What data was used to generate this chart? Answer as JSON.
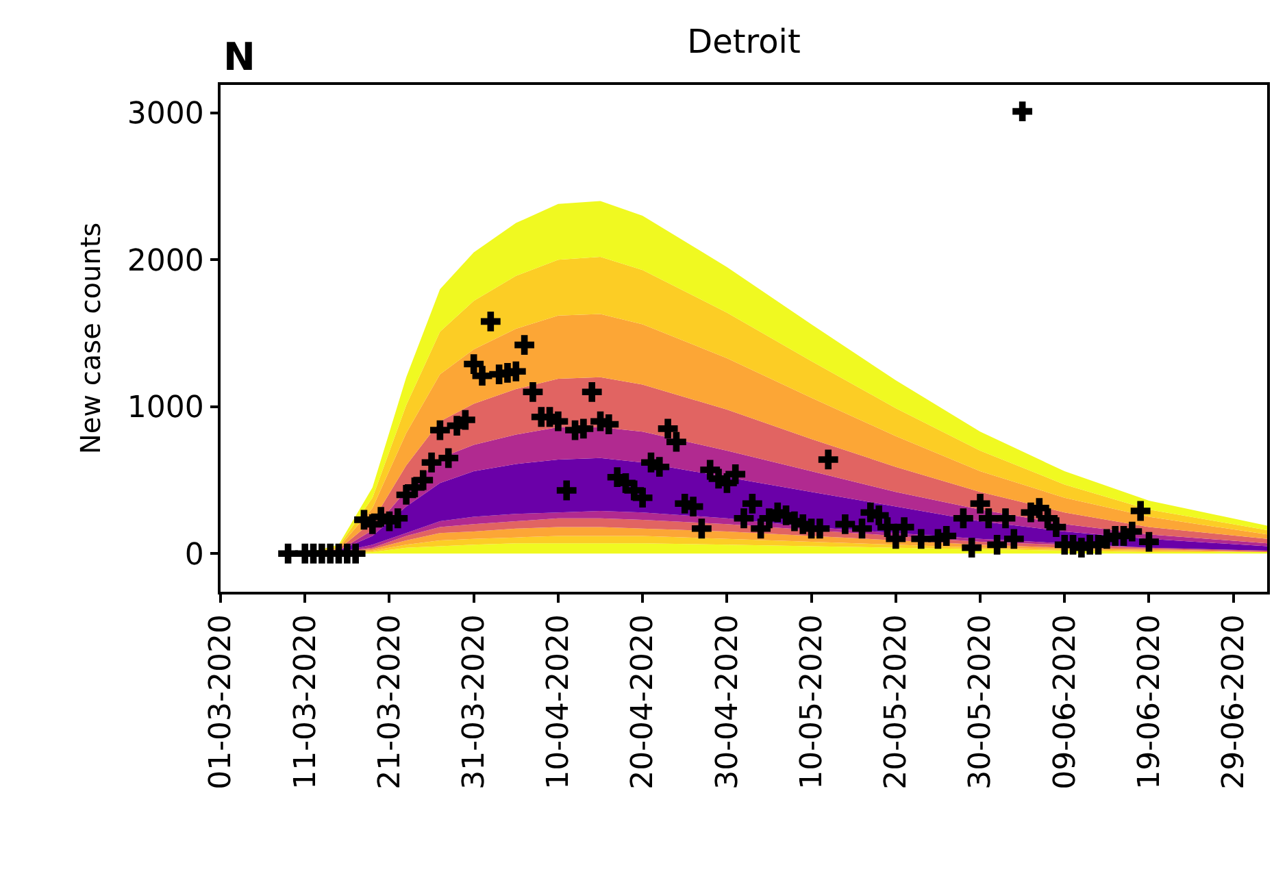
{
  "chart_data": {
    "type": "area",
    "stacked": true,
    "title": "Detroit",
    "ylabel": "New case counts",
    "annotations": [
      "N"
    ],
    "xlim": [
      "2020-03-01",
      "2020-07-03"
    ],
    "xticks": [
      {
        "value": "2020-03-01",
        "label": "01-03-2020"
      },
      {
        "value": "2020-03-11",
        "label": "11-03-2020"
      },
      {
        "value": "2020-03-21",
        "label": "21-03-2020"
      },
      {
        "value": "2020-03-31",
        "label": "31-03-2020"
      },
      {
        "value": "2020-04-10",
        "label": "10-04-2020"
      },
      {
        "value": "2020-04-20",
        "label": "20-04-2020"
      },
      {
        "value": "2020-04-30",
        "label": "30-04-2020"
      },
      {
        "value": "2020-05-10",
        "label": "10-05-2020"
      },
      {
        "value": "2020-05-20",
        "label": "20-05-2020"
      },
      {
        "value": "2020-05-30",
        "label": "30-05-2020"
      },
      {
        "value": "2020-06-09",
        "label": "09-06-2020"
      },
      {
        "value": "2020-06-19",
        "label": "19-06-2020"
      },
      {
        "value": "2020-06-29",
        "label": "29-06-2020"
      }
    ],
    "ylim": [
      -260,
      3190
    ],
    "yticks": [
      0,
      1000,
      2000,
      3000
    ],
    "x": [
      "2020-03-11",
      "2020-03-15",
      "2020-03-19",
      "2020-03-23",
      "2020-03-27",
      "2020-03-31",
      "2020-04-05",
      "2020-04-10",
      "2020-04-15",
      "2020-04-20",
      "2020-04-30",
      "2020-05-10",
      "2020-05-20",
      "2020-05-30",
      "2020-06-09",
      "2020-06-19",
      "2020-07-03"
    ],
    "series": [
      {
        "color": "#f0f921",
        "values": [
          0,
          0,
          10,
          40,
          50,
          60,
          70,
          70,
          70,
          70,
          60,
          50,
          40,
          30,
          20,
          10,
          10
        ]
      },
      {
        "color": "#fccd25",
        "values": [
          0,
          0,
          10,
          20,
          40,
          40,
          40,
          50,
          50,
          50,
          40,
          30,
          20,
          10,
          10,
          10,
          0
        ]
      },
      {
        "color": "#fca636",
        "values": [
          0,
          10,
          10,
          30,
          50,
          50,
          60,
          60,
          60,
          50,
          50,
          40,
          30,
          20,
          10,
          10,
          0
        ]
      },
      {
        "color": "#e16462",
        "values": [
          0,
          0,
          10,
          30,
          40,
          50,
          50,
          60,
          60,
          60,
          50,
          40,
          30,
          20,
          20,
          10,
          10
        ]
      },
      {
        "color": "#b12a90",
        "values": [
          0,
          0,
          20,
          20,
          40,
          50,
          50,
          40,
          50,
          50,
          40,
          20,
          20,
          20,
          10,
          0,
          0
        ]
      },
      {
        "color": "#6a00a8",
        "values": [
          0,
          10,
          60,
          180,
          260,
          310,
          340,
          360,
          360,
          340,
          280,
          240,
          180,
          120,
          80,
          60,
          30
        ]
      },
      {
        "color": "#b12a90",
        "values": [
          0,
          0,
          40,
          110,
          170,
          180,
          200,
          220,
          210,
          210,
          180,
          140,
          100,
          80,
          50,
          30,
          20
        ]
      },
      {
        "color": "#e16462",
        "values": [
          0,
          10,
          60,
          170,
          250,
          280,
          310,
          330,
          340,
          320,
          280,
          220,
          170,
          120,
          80,
          50,
          30
        ]
      },
      {
        "color": "#fca636",
        "values": [
          0,
          10,
          90,
          220,
          320,
          370,
          410,
          430,
          430,
          410,
          350,
          280,
          210,
          140,
          100,
          70,
          30
        ]
      },
      {
        "color": "#fccd25",
        "values": [
          0,
          10,
          70,
          190,
          290,
          330,
          360,
          380,
          390,
          370,
          310,
          250,
          190,
          140,
          90,
          50,
          30
        ]
      },
      {
        "color": "#f0f921",
        "values": [
          0,
          10,
          70,
          190,
          290,
          330,
          360,
          380,
          380,
          370,
          310,
          250,
          190,
          130,
          90,
          60,
          30
        ]
      },
      {
        "type": "scatter",
        "marker": "cross",
        "color": "#000000",
        "x": [
          "2020-03-09",
          "2020-03-11",
          "2020-03-12",
          "2020-03-13",
          "2020-03-14",
          "2020-03-15",
          "2020-03-16",
          "2020-03-17",
          "2020-03-18",
          "2020-03-19",
          "2020-03-20",
          "2020-03-21",
          "2020-03-22",
          "2020-03-23",
          "2020-03-24",
          "2020-03-25",
          "2020-03-26",
          "2020-03-27",
          "2020-03-28",
          "2020-03-29",
          "2020-03-30",
          "2020-03-31",
          "2020-04-01",
          "2020-04-02",
          "2020-04-03",
          "2020-04-04",
          "2020-04-05",
          "2020-04-06",
          "2020-04-07",
          "2020-04-08",
          "2020-04-09",
          "2020-04-10",
          "2020-04-11",
          "2020-04-12",
          "2020-04-13",
          "2020-04-14",
          "2020-04-15",
          "2020-04-16",
          "2020-04-17",
          "2020-04-18",
          "2020-04-19",
          "2020-04-20",
          "2020-04-21",
          "2020-04-22",
          "2020-04-23",
          "2020-04-24",
          "2020-04-25",
          "2020-04-26",
          "2020-04-27",
          "2020-04-28",
          "2020-04-29",
          "2020-04-30",
          "2020-05-01",
          "2020-05-02",
          "2020-05-03",
          "2020-05-04",
          "2020-05-05",
          "2020-05-06",
          "2020-05-07",
          "2020-05-08",
          "2020-05-09",
          "2020-05-10",
          "2020-05-11",
          "2020-05-12",
          "2020-05-14",
          "2020-05-16",
          "2020-05-17",
          "2020-05-18",
          "2020-05-19",
          "2020-05-20",
          "2020-05-21",
          "2020-05-23",
          "2020-05-25",
          "2020-05-26",
          "2020-05-28",
          "2020-05-29",
          "2020-05-30",
          "2020-05-31",
          "2020-06-01",
          "2020-06-02",
          "2020-06-03",
          "2020-06-04",
          "2020-06-05",
          "2020-06-06",
          "2020-06-07",
          "2020-06-08",
          "2020-06-09",
          "2020-06-10",
          "2020-06-11",
          "2020-06-12",
          "2020-06-13",
          "2020-06-14",
          "2020-06-15",
          "2020-06-16",
          "2020-06-17",
          "2020-06-18",
          "2020-06-19"
        ],
        "values": [
          0,
          0,
          0,
          0,
          0,
          0,
          0,
          0,
          230,
          200,
          250,
          220,
          240,
          400,
          450,
          500,
          620,
          840,
          650,
          870,
          910,
          1290,
          1210,
          1580,
          1220,
          1230,
          1240,
          1420,
          1100,
          930,
          930,
          900,
          430,
          840,
          850,
          1100,
          900,
          880,
          520,
          480,
          430,
          380,
          620,
          590,
          850,
          760,
          340,
          320,
          170,
          570,
          510,
          480,
          540,
          240,
          340,
          170,
          240,
          280,
          260,
          220,
          200,
          170,
          170,
          640,
          200,
          170,
          280,
          260,
          180,
          100,
          180,
          100,
          100,
          120,
          240,
          40,
          340,
          240,
          60,
          240,
          100,
          3010,
          280,
          310,
          240,
          180,
          60,
          60,
          40,
          60,
          60,
          100,
          120,
          120,
          150,
          290,
          80
        ]
      }
    ]
  }
}
